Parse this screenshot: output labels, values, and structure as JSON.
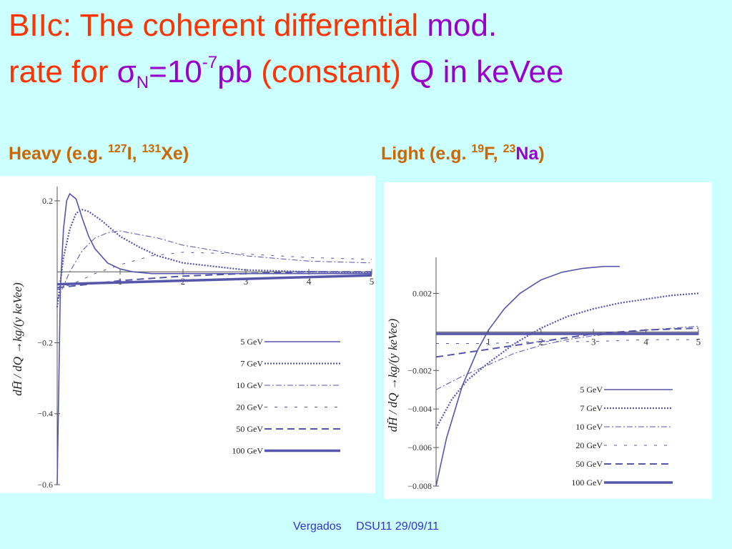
{
  "slide": {
    "title_line1_a": "BIIc: The coherent differential",
    "title_line1_b": "mod.",
    "title_line2_a": "rate for",
    "sigma": "σ",
    "sigma_sub": "N",
    "eq": "=10",
    "exp": "-7",
    "unit_pb": "pb",
    "constant": "(constant)",
    "q_in": "Q in keVee"
  },
  "labels": {
    "heavy_a": "Heavy (e.g.",
    "heavy_i_mass": "127",
    "heavy_i": "I,",
    "heavy_xe_mass": "131",
    "heavy_xe": "Xe",
    "heavy_close": ")",
    "light_a": "Light (e.g.",
    "light_f_mass": "19",
    "light_f": "F,",
    "light_na_mass": "23",
    "light_na": "Na",
    "light_close": ")"
  },
  "footer": {
    "author": "Vergados",
    "conf": "DSU11  29/09/11"
  },
  "colors": {
    "curve": "#5555aa",
    "title_red": "#ff3300",
    "title_purple": "#9900cc",
    "label_orange": "#cc6600",
    "background": "#ccffff"
  },
  "chart_data": [
    {
      "type": "line",
      "panel": "heavy",
      "ylabel": "dH̄ / dQ  →kg/(y  keVee)",
      "xlim": [
        0,
        5
      ],
      "ylim": [
        -0.6,
        0.22
      ],
      "x_ticks": [
        "1",
        "2",
        "3",
        "4",
        "5"
      ],
      "y_ticks": [
        "0.2",
        "-0.2",
        "-0.4",
        "-0.6"
      ],
      "legend_position": "lower-right",
      "series": [
        {
          "name": "5 GeV",
          "style": "solid",
          "x": [
            0,
            0.05,
            0.1,
            0.15,
            0.2,
            0.3,
            0.4,
            0.5,
            0.6,
            0.8,
            1.0,
            1.2,
            1.5,
            2,
            3,
            5
          ],
          "y": [
            -0.6,
            -0.05,
            0.12,
            0.2,
            0.235,
            0.205,
            0.15,
            0.1,
            0.065,
            0.025,
            0.008,
            0.0,
            -0.005,
            -0.005,
            -0.005,
            -0.005
          ]
        },
        {
          "name": "7 GeV",
          "style": "dotted",
          "x": [
            0,
            0.1,
            0.2,
            0.3,
            0.4,
            0.5,
            0.7,
            1.0,
            1.3,
            1.6,
            2,
            3,
            4,
            5
          ],
          "y": [
            -0.1,
            0.04,
            0.12,
            0.165,
            0.175,
            0.17,
            0.145,
            0.1,
            0.07,
            0.045,
            0.025,
            0.005,
            0.0,
            -0.002
          ]
        },
        {
          "name": "10 GeV",
          "style": "dash-dot",
          "x": [
            0,
            0.2,
            0.4,
            0.6,
            0.8,
            1.0,
            1.3,
            1.6,
            2,
            2.5,
            3,
            4,
            5
          ],
          "y": [
            -0.08,
            0.0,
            0.06,
            0.095,
            0.11,
            0.115,
            0.105,
            0.095,
            0.075,
            0.06,
            0.045,
            0.03,
            0.025
          ]
        },
        {
          "name": "20 GeV",
          "style": "sparse-dash",
          "x": [
            0,
            0.3,
            0.6,
            1.0,
            1.5,
            2,
            3,
            4,
            5
          ],
          "y": [
            -0.05,
            -0.03,
            -0.005,
            0.02,
            0.045,
            0.055,
            0.05,
            0.04,
            0.035
          ]
        },
        {
          "name": "50 GeV",
          "style": "long-dash",
          "x": [
            0,
            0.5,
            1.0,
            2,
            3,
            4,
            5
          ],
          "y": [
            -0.045,
            -0.035,
            -0.025,
            -0.012,
            -0.005,
            0.0,
            0.0
          ]
        },
        {
          "name": "100 GeV",
          "style": "thick",
          "x": [
            0,
            1,
            2,
            3,
            4,
            5
          ],
          "y": [
            -0.035,
            -0.03,
            -0.025,
            -0.02,
            -0.015,
            -0.01
          ]
        }
      ]
    },
    {
      "type": "line",
      "panel": "light",
      "ylabel": "dH̄ / dQ  →kg/(y  keVee)",
      "xlim": [
        0,
        5
      ],
      "ylim": [
        -0.008,
        0.0035
      ],
      "x_ticks": [
        "1",
        "2",
        "3",
        "4",
        "5"
      ],
      "y_ticks": [
        "0.002",
        "-0.002",
        "-0.004",
        "-0.006",
        "-0.008"
      ],
      "legend_position": "lower-right",
      "series": [
        {
          "name": "5 GeV",
          "style": "solid",
          "x": [
            0,
            0.2,
            0.5,
            0.8,
            1.0,
            1.3,
            1.6,
            2.0,
            2.4,
            2.8,
            3.2,
            3.5
          ],
          "y": [
            -0.008,
            -0.0055,
            -0.0028,
            -0.0009,
            0.0001,
            0.0012,
            0.002,
            0.0027,
            0.0031,
            0.0033,
            0.0034,
            0.0034
          ]
        },
        {
          "name": "7 GeV",
          "style": "dotted",
          "x": [
            0,
            0.3,
            0.6,
            1.0,
            1.5,
            2.0,
            2.5,
            3.0,
            3.5,
            4.0,
            4.5,
            5.0
          ],
          "y": [
            -0.005,
            -0.0035,
            -0.0025,
            -0.0016,
            -0.0006,
            0.0002,
            0.0008,
            0.0012,
            0.0015,
            0.0017,
            0.0019,
            0.002
          ]
        },
        {
          "name": "10 GeV",
          "style": "dash-dot",
          "x": [
            0,
            0.5,
            1.0,
            1.5,
            2,
            2.5,
            3,
            4,
            5
          ],
          "y": [
            -0.003,
            -0.0023,
            -0.0017,
            -0.0011,
            -0.0007,
            -0.0004,
            -0.0002,
            0.0001,
            0.0003
          ]
        },
        {
          "name": "20 GeV",
          "style": "sparse-dash",
          "x": [
            0,
            1,
            2,
            3,
            4,
            5
          ],
          "y": [
            -0.0006,
            -0.0006,
            -0.0005,
            -0.0005,
            -0.0004,
            -0.0004
          ]
        },
        {
          "name": "50 GeV",
          "style": "long-dash",
          "x": [
            0,
            0.5,
            1,
            1.5,
            2,
            2.5,
            3,
            4,
            5
          ],
          "y": [
            -0.0013,
            -0.0011,
            -0.0009,
            -0.0007,
            -0.0005,
            -0.0003,
            -0.0001,
            0.0001,
            0.0002
          ]
        },
        {
          "name": "100 GeV",
          "style": "thick",
          "x": [
            0,
            1,
            2,
            3,
            4,
            5
          ],
          "y": [
            -0.0001,
            -0.0001,
            -0.0001,
            -0.0001,
            -0.0001,
            -0.0001
          ]
        }
      ]
    }
  ]
}
